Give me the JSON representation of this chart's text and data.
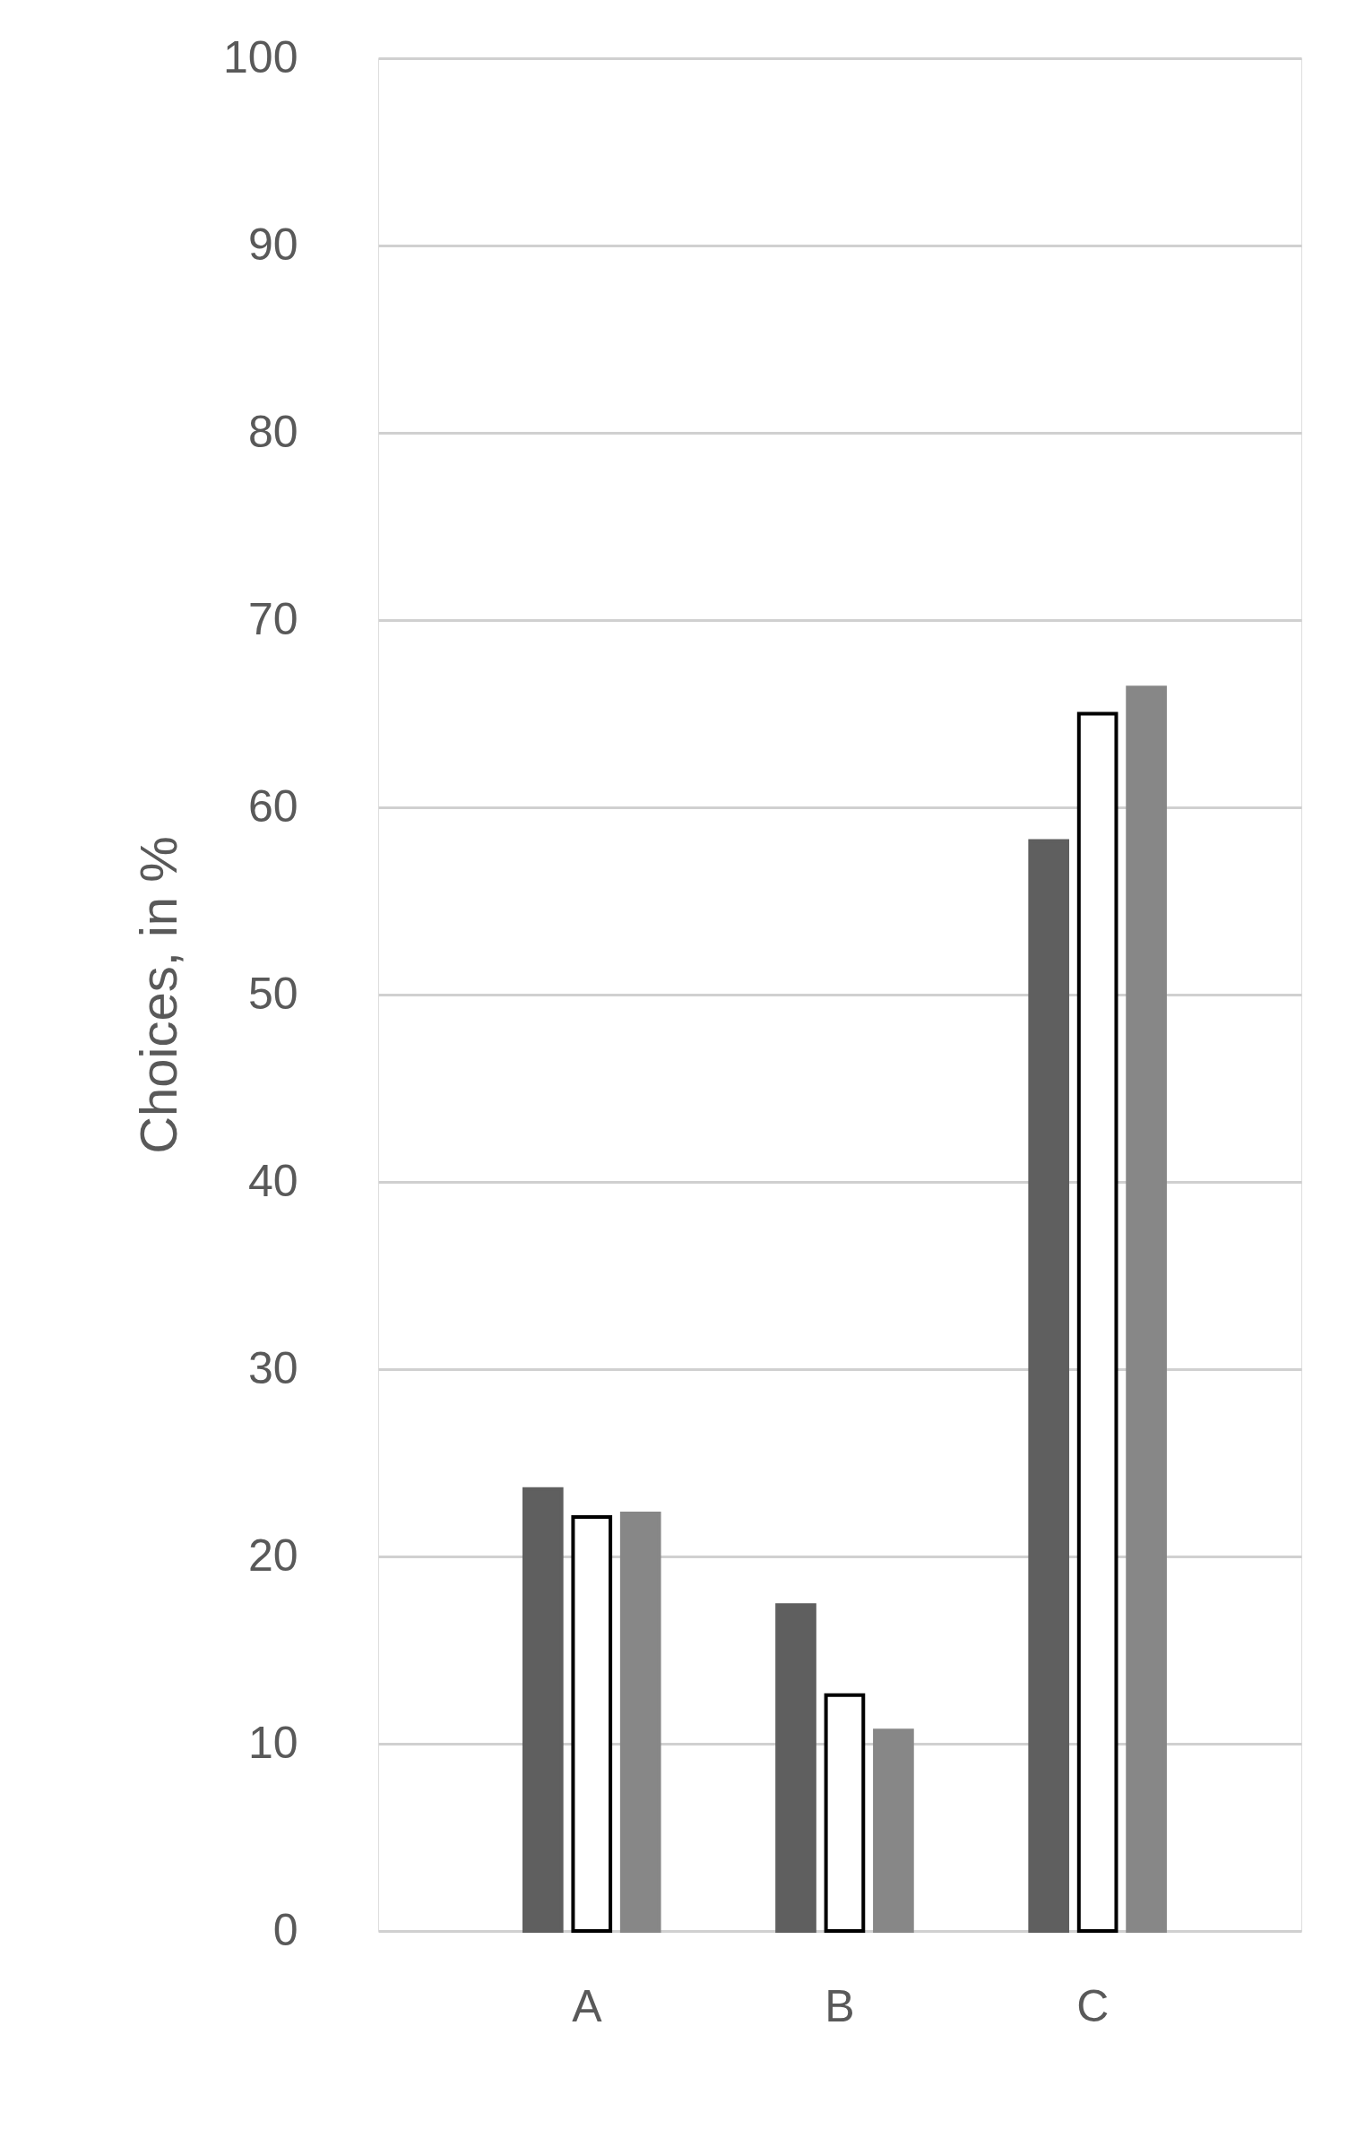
{
  "chart_data": {
    "type": "bar",
    "ylabel": "Choices, in %",
    "categories": [
      "A",
      "B",
      "C"
    ],
    "series": [
      {
        "color": "#5f5f5f",
        "values": [
          23.6,
          17.4,
          58.2
        ]
      },
      {
        "color": "#ffffff",
        "values": [
          22.1,
          12.6,
          65.0
        ]
      },
      {
        "color": "#878787",
        "values": [
          22.3,
          10.7,
          66.4
        ]
      }
    ],
    "ylim": [
      0,
      100
    ],
    "yticks": [
      0,
      10,
      20,
      30,
      40,
      50,
      60,
      70,
      80,
      90,
      100
    ],
    "grid": "y"
  }
}
